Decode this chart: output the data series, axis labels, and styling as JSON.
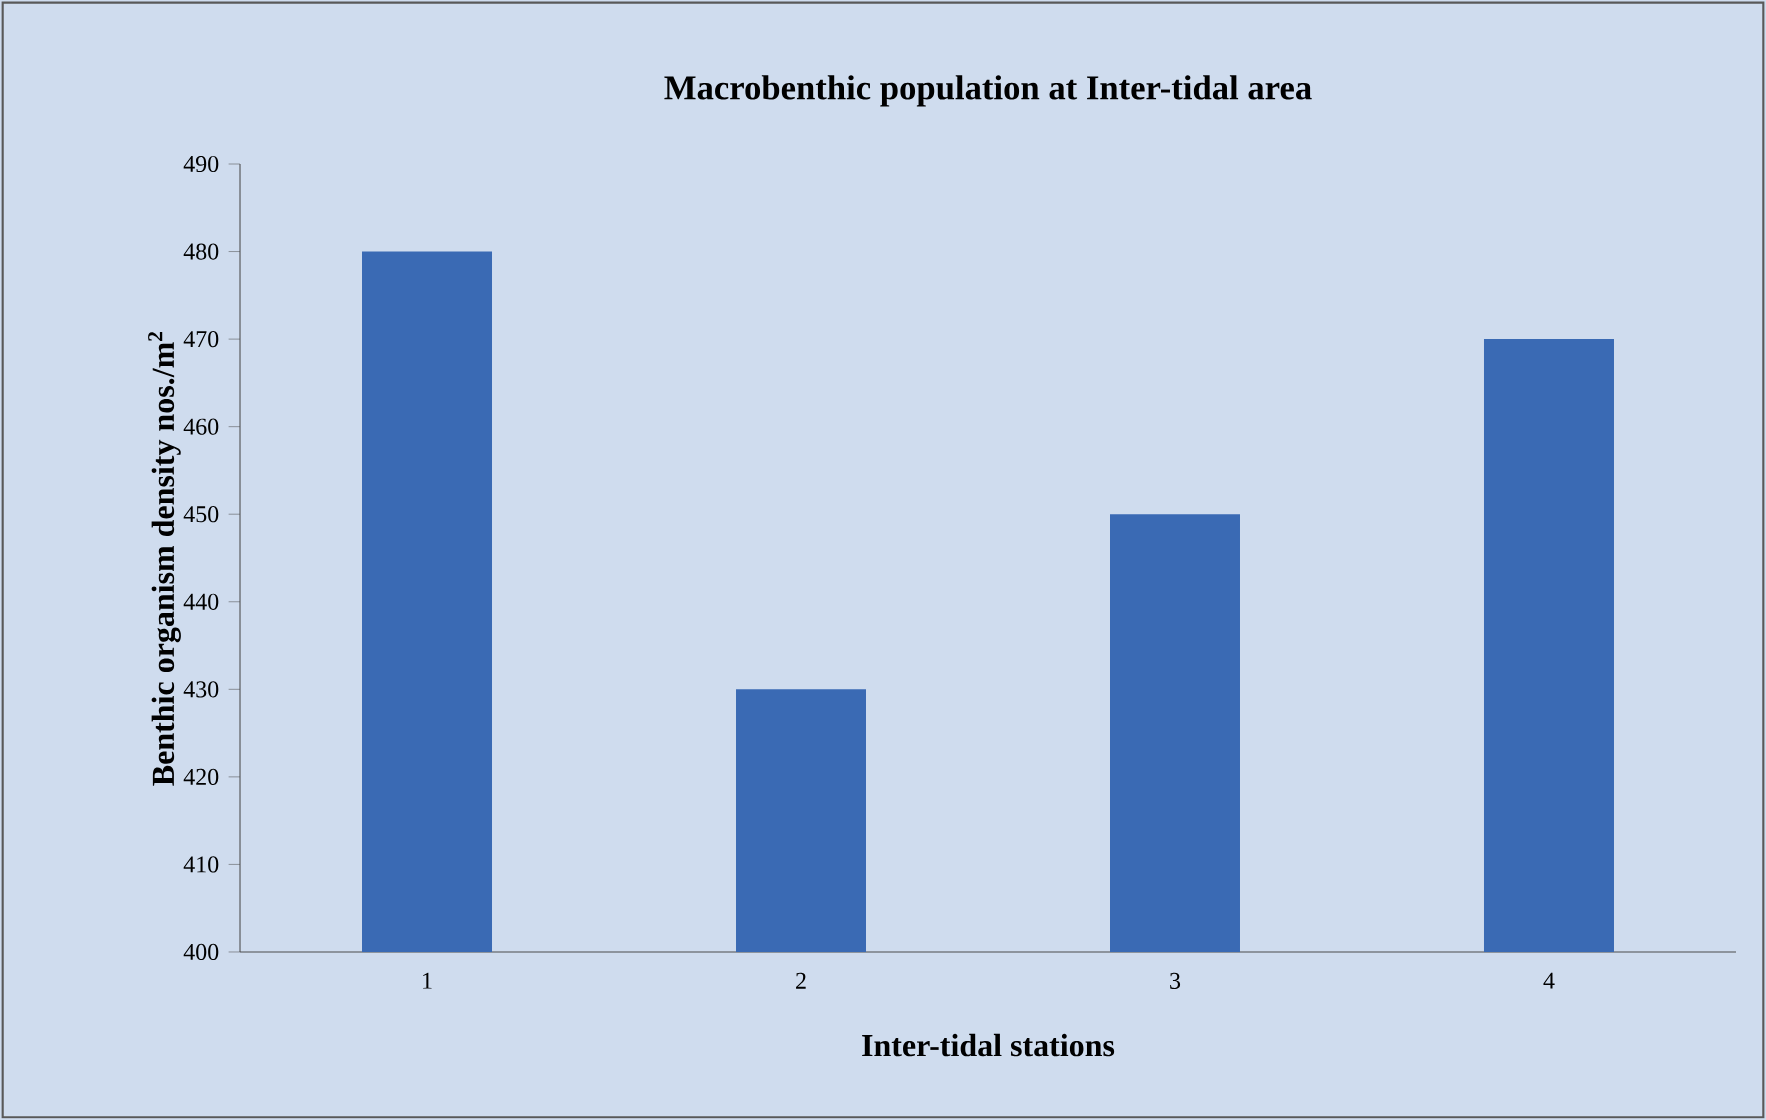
{
  "chart_data": {
    "type": "bar",
    "title": "Macrobenthic population at Inter-tidal area",
    "xlabel": "Inter-tidal stations",
    "ylabel": "Benthic organism density nos./m$^{2}$",
    "categories": [
      "1",
      "2",
      "3",
      "4"
    ],
    "values": [
      480,
      430,
      450,
      470
    ],
    "color": "#3a6ab4",
    "ylim": [
      400,
      490
    ],
    "yticks": [
      400,
      410,
      420,
      430,
      440,
      450,
      460,
      470,
      480,
      490
    ]
  }
}
